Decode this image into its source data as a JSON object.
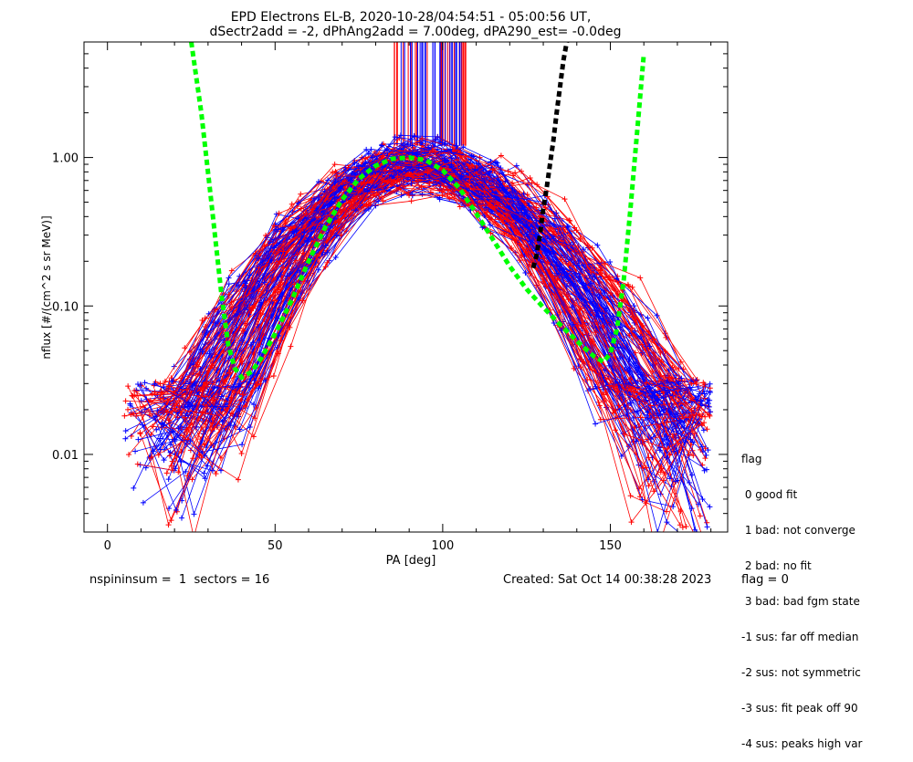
{
  "chart_data": {
    "type": "line",
    "title_line1": "EPD Electrons EL-B, 2020-10-28/04:54:51 - 05:00:56 UT,",
    "title_line2": "dSectr2add = -2, dPhAng2add = 7.00deg, dPA290_est=  -0.0deg",
    "xlabel": "PA [deg]",
    "ylabel": "nflux [#/(cm^2 s sr MeV)]",
    "xlim": [
      -7,
      185
    ],
    "ylim": [
      0.003,
      6
    ],
    "y_scale": "log",
    "x_ticks": [
      0,
      50,
      100,
      150
    ],
    "x_ticklabels": [
      "0",
      "50",
      "100",
      "150"
    ],
    "y_ticks": [
      0.01,
      0.1,
      1.0
    ],
    "y_ticklabels": [
      "0.01",
      "0.10",
      "1.00"
    ],
    "grid": false,
    "colors": {
      "red": "#ff0000",
      "blue": "#0000ff",
      "green": "#00ff00",
      "black": "#000000"
    },
    "series": [
      {
        "color": "green",
        "style": "dashed",
        "x": [
          25,
          28,
          31,
          34,
          36,
          38,
          40,
          43,
          46,
          50,
          55,
          60,
          65,
          70,
          75,
          80,
          85,
          90,
          95,
          100,
          105,
          110,
          115,
          120,
          125,
          130,
          135,
          140,
          145,
          148,
          150,
          152,
          154,
          156,
          158,
          160
        ],
        "y": [
          6.0,
          2.0,
          0.5,
          0.12,
          0.055,
          0.038,
          0.033,
          0.036,
          0.045,
          0.065,
          0.11,
          0.2,
          0.34,
          0.52,
          0.72,
          0.88,
          0.98,
          1.0,
          0.96,
          0.82,
          0.62,
          0.42,
          0.28,
          0.185,
          0.13,
          0.098,
          0.075,
          0.058,
          0.046,
          0.042,
          0.048,
          0.07,
          0.15,
          0.45,
          1.5,
          5.0
        ]
      },
      {
        "color": "black",
        "style": "dashed",
        "x": [
          127,
          128,
          129,
          130,
          131,
          132,
          133,
          134,
          135,
          136,
          137
        ],
        "y": [
          0.18,
          0.22,
          0.3,
          0.45,
          0.62,
          0.9,
          1.3,
          2.0,
          3.0,
          4.5,
          6.0
        ]
      }
    ]
  },
  "legend": {
    "title": "flag",
    "items": [
      " 0 good fit",
      " 1 bad: not converge",
      " 2 bad: no fit",
      " 3 bad: bad fgm state",
      "-1 sus: far off median",
      "-2 sus: not symmetric",
      "-3 sus: fit peak off 90",
      "-4 sus: peaks high var"
    ]
  },
  "footer": {
    "left": "nspininsum =  1  sectors = 16",
    "created": "Created: Sat Oct 14 00:38:28 2023",
    "flag": "flag = 0"
  }
}
